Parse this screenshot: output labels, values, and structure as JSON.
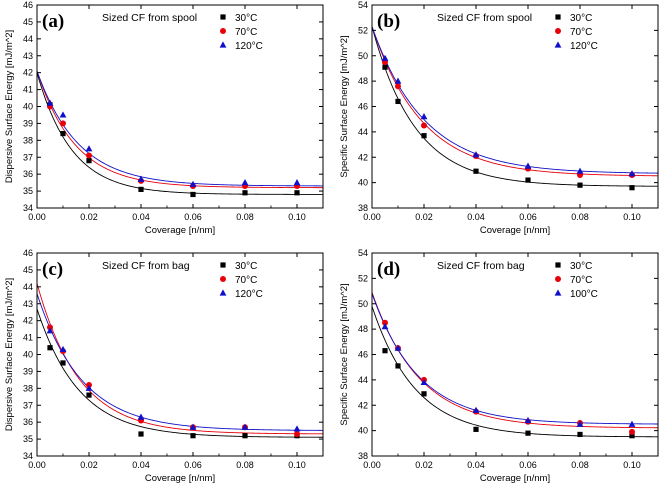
{
  "chart_data": [
    {
      "type": "scatter",
      "panel_label": "(a)",
      "title": "Sized CF from spool",
      "xlabel": "Coverage [n/nm]",
      "ylabel": "Dispersive Surface Energy [mJ/m^2]",
      "xlim": [
        0.0,
        0.11
      ],
      "ylim": [
        34,
        46
      ],
      "x_ticks": [
        "0.00",
        "0.02",
        "0.04",
        "0.06",
        "0.08",
        "0.10"
      ],
      "y_ticks": [
        "34",
        "35",
        "36",
        "37",
        "38",
        "39",
        "40",
        "41",
        "42",
        "43",
        "44",
        "45",
        "46"
      ],
      "x": [
        0.005,
        0.01,
        0.02,
        0.04,
        0.06,
        0.08,
        0.1
      ],
      "series": [
        {
          "name": "30°C",
          "marker": "square",
          "color": "#000000",
          "values": [
            40.1,
            38.4,
            36.8,
            35.1,
            34.8,
            34.9,
            34.9
          ],
          "fit": {
            "y0": 34.8,
            "A": 7.2,
            "k": 75
          }
        },
        {
          "name": "70°C",
          "marker": "circle",
          "color": "#e8000b",
          "values": [
            40.0,
            39.0,
            37.1,
            35.6,
            35.3,
            35.3,
            35.3
          ],
          "fit": {
            "y0": 35.2,
            "A": 6.9,
            "k": 68
          }
        },
        {
          "name": "120°C",
          "marker": "triangle",
          "color": "#1010c8",
          "values": [
            40.2,
            39.5,
            37.5,
            35.7,
            35.4,
            35.5,
            35.5
          ],
          "fit": {
            "y0": 35.3,
            "A": 6.8,
            "k": 63
          }
        }
      ],
      "legend_position": "top-right"
    },
    {
      "type": "scatter",
      "panel_label": "(b)",
      "title": "Sized CF from spool",
      "xlabel": "Coverage [n/nm]",
      "ylabel": "Specific Surface Energy [mJ/m^2]",
      "xlim": [
        0.0,
        0.11
      ],
      "ylim": [
        38,
        54
      ],
      "x_ticks": [
        "0.00",
        "0.02",
        "0.04",
        "0.06",
        "0.08",
        "0.10"
      ],
      "y_ticks": [
        "38",
        "40",
        "42",
        "44",
        "46",
        "48",
        "50",
        "52",
        "54"
      ],
      "x": [
        0.005,
        0.01,
        0.02,
        0.04,
        0.06,
        0.08,
        0.1
      ],
      "series": [
        {
          "name": "30°C",
          "marker": "square",
          "color": "#000000",
          "values": [
            49.1,
            46.4,
            43.7,
            40.9,
            40.2,
            39.8,
            39.6
          ],
          "fit": {
            "y0": 39.7,
            "A": 12.6,
            "k": 60
          }
        },
        {
          "name": "70°C",
          "marker": "circle",
          "color": "#e8000b",
          "values": [
            49.5,
            47.6,
            44.5,
            42.1,
            41.1,
            40.6,
            40.6
          ],
          "fit": {
            "y0": 40.5,
            "A": 11.8,
            "k": 52
          }
        },
        {
          "name": "120°C",
          "marker": "triangle",
          "color": "#1010c8",
          "values": [
            49.8,
            48.0,
            45.2,
            42.2,
            41.3,
            40.9,
            40.7
          ],
          "fit": {
            "y0": 40.7,
            "A": 11.6,
            "k": 50
          }
        }
      ],
      "legend_position": "top-right"
    },
    {
      "type": "scatter",
      "panel_label": "(c)",
      "title": "Sized CF from bag",
      "xlabel": "Coverage [n/nm]",
      "ylabel": "Dispersive Surface Energy [mJ/m^2]",
      "xlim": [
        0.0,
        0.11
      ],
      "ylim": [
        34,
        46
      ],
      "x_ticks": [
        "0.00",
        "0.02",
        "0.04",
        "0.06",
        "0.08",
        "0.10"
      ],
      "y_ticks": [
        "34",
        "35",
        "36",
        "37",
        "38",
        "39",
        "40",
        "41",
        "42",
        "43",
        "44",
        "45",
        "46"
      ],
      "x": [
        0.005,
        0.01,
        0.02,
        0.04,
        0.06,
        0.08,
        0.1
      ],
      "series": [
        {
          "name": "30°C",
          "marker": "square",
          "color": "#000000",
          "values": [
            40.4,
            39.5,
            37.6,
            35.3,
            35.2,
            35.2,
            35.2
          ],
          "fit": {
            "y0": 35.1,
            "A": 7.6,
            "k": 62
          }
        },
        {
          "name": "70°C",
          "marker": "circle",
          "color": "#e8000b",
          "values": [
            41.6,
            40.2,
            38.2,
            36.1,
            35.7,
            35.7,
            35.3
          ],
          "fit": {
            "y0": 35.3,
            "A": 8.9,
            "k": 62
          }
        },
        {
          "name": "120°C",
          "marker": "triangle",
          "color": "#1010c8",
          "values": [
            41.4,
            40.3,
            38.0,
            36.3,
            35.7,
            35.7,
            35.6
          ],
          "fit": {
            "y0": 35.5,
            "A": 8.1,
            "k": 58
          }
        }
      ],
      "legend_position": "top-right"
    },
    {
      "type": "scatter",
      "panel_label": "(d)",
      "title": "Sized CF from bag",
      "xlabel": "Coverage [n/nm]",
      "ylabel": "Specific Surface Energy [mJ/m^2]",
      "xlim": [
        0.0,
        0.11
      ],
      "ylim": [
        38,
        54
      ],
      "x_ticks": [
        "0.00",
        "0.02",
        "0.04",
        "0.06",
        "0.08",
        "0.10"
      ],
      "y_ticks": [
        "38",
        "40",
        "42",
        "44",
        "46",
        "48",
        "50",
        "52",
        "54"
      ],
      "x": [
        0.005,
        0.01,
        0.02,
        0.04,
        0.06,
        0.08,
        0.1
      ],
      "series": [
        {
          "name": "30°C",
          "marker": "square",
          "color": "#000000",
          "values": [
            46.3,
            45.1,
            42.9,
            40.1,
            39.8,
            39.7,
            39.6
          ],
          "fit": {
            "y0": 39.5,
            "A": 10.3,
            "k": 60
          }
        },
        {
          "name": "70°C",
          "marker": "circle",
          "color": "#e8000b",
          "values": [
            48.5,
            46.5,
            44.0,
            41.5,
            40.7,
            40.6,
            39.9
          ],
          "fit": {
            "y0": 40.2,
            "A": 10.7,
            "k": 55
          }
        },
        {
          "name": "100°C",
          "marker": "triangle",
          "color": "#1010c8",
          "values": [
            48.2,
            46.5,
            43.8,
            41.6,
            40.8,
            40.5,
            40.5
          ],
          "fit": {
            "y0": 40.5,
            "A": 10.3,
            "k": 56
          }
        }
      ],
      "legend_position": "top-right"
    }
  ]
}
